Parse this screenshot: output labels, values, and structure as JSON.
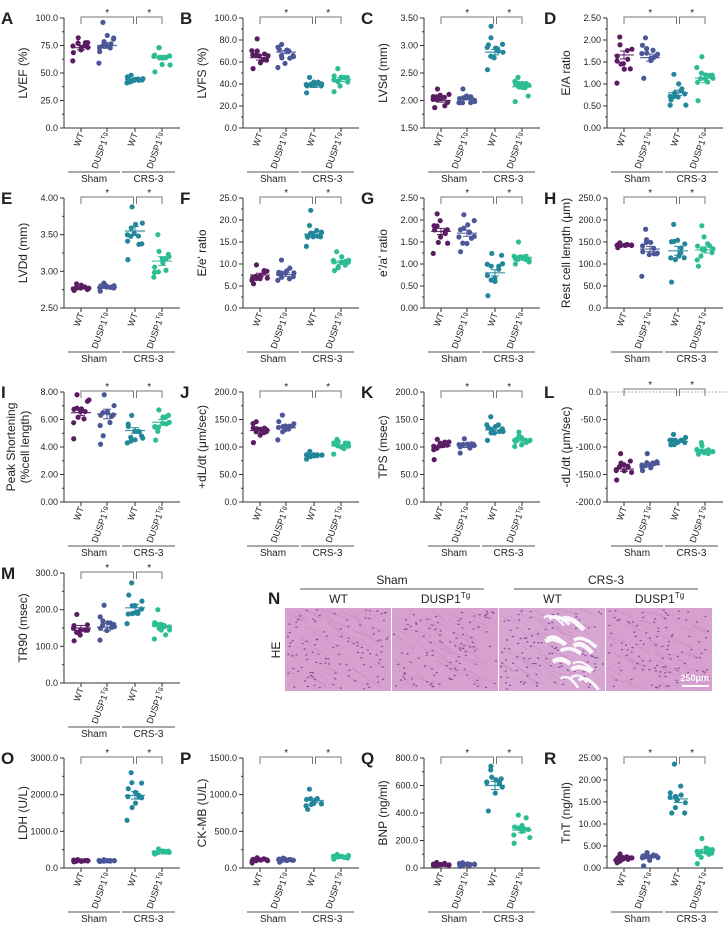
{
  "colors": {
    "sham_wt": "#5a1d62",
    "sham_tg": "#4c5797",
    "crs_wt": "#23879b",
    "crs_tg": "#2dbd95",
    "axis": "#333333",
    "bracket": "#777777"
  },
  "x_labels": {
    "wt": "WT",
    "tg": "DUSP1",
    "tg_sup": "Tg",
    "sham": "Sham",
    "crs": "CRS-3"
  },
  "significance": "*",
  "chart_data": [
    {
      "panel": "A",
      "type": "scatter",
      "ylabel": "LVEF (%)",
      "ylim": [
        0,
        100
      ],
      "ticks": [
        "0.0",
        "25.0",
        "50.0",
        "75.0",
        "100.0"
      ],
      "groups": [
        {
          "mean": 73,
          "sem": 2.0,
          "min": 61,
          "max": 82
        },
        {
          "mean": 75,
          "sem": 2.6,
          "min": 59,
          "max": 96
        },
        {
          "mean": 44,
          "sem": 0.7,
          "min": 41,
          "max": 48
        },
        {
          "mean": 64,
          "sem": 2.0,
          "min": 51,
          "max": 73
        }
      ]
    },
    {
      "panel": "B",
      "type": "scatter",
      "ylabel": "LVFS (%)",
      "ylim": [
        0,
        100
      ],
      "ticks": [
        "0.0",
        "20.0",
        "40.0",
        "60.0",
        "80.0",
        "100.0"
      ],
      "groups": [
        {
          "mean": 64,
          "sem": 2.3,
          "min": 54,
          "max": 81
        },
        {
          "mean": 69,
          "sem": 1.4,
          "min": 55,
          "max": 76
        },
        {
          "mean": 38,
          "sem": 1.2,
          "min": 32,
          "max": 46
        },
        {
          "mean": 44,
          "sem": 1.8,
          "min": 33,
          "max": 54
        }
      ]
    },
    {
      "panel": "C",
      "type": "scatter",
      "ylabel": "LVSd (mm)",
      "ylim": [
        1.5,
        3.5
      ],
      "ticks": [
        "1.50",
        "2.00",
        "2.50",
        "3.00",
        "3.50"
      ],
      "groups": [
        {
          "mean": 2.0,
          "sem": 0.03,
          "min": 1.87,
          "max": 2.21
        },
        {
          "mean": 2.03,
          "sem": 0.02,
          "min": 1.96,
          "max": 2.21
        },
        {
          "mean": 2.88,
          "sem": 0.05,
          "min": 2.56,
          "max": 3.35
        },
        {
          "mean": 2.25,
          "sem": 0.04,
          "min": 1.98,
          "max": 2.42
        }
      ]
    },
    {
      "panel": "D",
      "type": "scatter",
      "ylabel": "E/A ratio",
      "ylim": [
        0,
        2.5
      ],
      "ticks": [
        "0.00",
        "0.50",
        "1.00",
        "1.50",
        "2.00",
        "2.50"
      ],
      "groups": [
        {
          "mean": 1.66,
          "sem": 0.09,
          "min": 1.02,
          "max": 2.07
        },
        {
          "mean": 1.6,
          "sem": 0.08,
          "min": 1.13,
          "max": 2.05
        },
        {
          "mean": 0.8,
          "sem": 0.06,
          "min": 0.52,
          "max": 1.22
        },
        {
          "mean": 1.13,
          "sem": 0.1,
          "min": 0.62,
          "max": 1.62
        }
      ]
    },
    {
      "panel": "E",
      "type": "scatter",
      "ylabel": "LVDd (mm)",
      "ylim": [
        2.5,
        4.0
      ],
      "ticks": [
        "2.50",
        "3.00",
        "3.50",
        "4.00"
      ],
      "groups": [
        {
          "mean": 2.78,
          "sem": 0.01,
          "min": 2.74,
          "max": 2.83
        },
        {
          "mean": 2.78,
          "sem": 0.01,
          "min": 2.73,
          "max": 2.84
        },
        {
          "mean": 3.55,
          "sem": 0.06,
          "min": 3.16,
          "max": 3.88
        },
        {
          "mean": 3.14,
          "sem": 0.06,
          "min": 2.92,
          "max": 3.5
        }
      ]
    },
    {
      "panel": "F",
      "type": "scatter",
      "ylabel": "E/e' ratio",
      "ylim": [
        0,
        25
      ],
      "ticks": [
        "0.0",
        "5.0",
        "10.0",
        "15.0",
        "20.0",
        "25.0"
      ],
      "groups": [
        {
          "mean": 7.5,
          "sem": 0.4,
          "min": 5.5,
          "max": 9.8
        },
        {
          "mean": 7.6,
          "sem": 0.4,
          "min": 6.3,
          "max": 10.9
        },
        {
          "mean": 16.8,
          "sem": 0.6,
          "min": 14.0,
          "max": 22.2
        },
        {
          "mean": 10.3,
          "sem": 0.4,
          "min": 8.5,
          "max": 12.8
        }
      ]
    },
    {
      "panel": "G",
      "type": "scatter",
      "ylabel": "e'/a' ratio",
      "ylim": [
        0,
        2.5
      ],
      "ticks": [
        "0.00",
        "0.50",
        "1.00",
        "1.50",
        "2.00",
        "2.50"
      ],
      "groups": [
        {
          "mean": 1.74,
          "sem": 0.07,
          "min": 1.24,
          "max": 2.14
        },
        {
          "mean": 1.7,
          "sem": 0.07,
          "min": 1.28,
          "max": 2.12
        },
        {
          "mean": 0.8,
          "sem": 0.07,
          "min": 0.28,
          "max": 1.24
        },
        {
          "mean": 1.15,
          "sem": 0.05,
          "min": 1.0,
          "max": 1.5
        }
      ]
    },
    {
      "panel": "H",
      "type": "scatter",
      "ylabel": "Rest cell length (μm)",
      "ylim": [
        0,
        250
      ],
      "ticks": [
        "0.0",
        "50.0",
        "100.0",
        "150.0",
        "200.0",
        "250.0"
      ],
      "groups": [
        {
          "mean": 142,
          "sem": 1.2,
          "min": 137,
          "max": 148
        },
        {
          "mean": 134,
          "sem": 6,
          "min": 72,
          "max": 179
        },
        {
          "mean": 130,
          "sem": 10,
          "min": 59,
          "max": 190
        },
        {
          "mean": 132,
          "sem": 7,
          "min": 95,
          "max": 187
        }
      ]
    },
    {
      "panel": "I",
      "type": "scatter",
      "ylabel": "Peak Shortening",
      "ylabel2": "(%cell length)",
      "ylim": [
        0,
        8
      ],
      "ticks": [
        "0.00",
        "2.00",
        "4.00",
        "6.00",
        "8.00"
      ],
      "groups": [
        {
          "mean": 6.5,
          "sem": 0.2,
          "min": 4.6,
          "max": 7.8
        },
        {
          "mean": 6.4,
          "sem": 0.35,
          "min": 4.2,
          "max": 7.8
        },
        {
          "mean": 5.2,
          "sem": 0.2,
          "min": 4.3,
          "max": 6.3
        },
        {
          "mean": 5.8,
          "sem": 0.2,
          "min": 4.5,
          "max": 6.7
        }
      ]
    },
    {
      "panel": "J",
      "type": "scatter",
      "ylabel": "+dL/dt (μm/sec)",
      "ylim": [
        0,
        200
      ],
      "ticks": [
        "0.0",
        "50.0",
        "100.0",
        "150.0",
        "200.0"
      ],
      "groups": [
        {
          "mean": 130,
          "sem": 3,
          "min": 108,
          "max": 146
        },
        {
          "mean": 135,
          "sem": 4,
          "min": 113,
          "max": 158
        },
        {
          "mean": 84,
          "sem": 1.5,
          "min": 78,
          "max": 92
        },
        {
          "mean": 102,
          "sem": 2,
          "min": 87,
          "max": 114
        }
      ]
    },
    {
      "panel": "K",
      "type": "scatter",
      "ylabel": "TPS (msec)",
      "ylim": [
        0,
        200
      ],
      "ticks": [
        "0.0",
        "50.0",
        "100.0",
        "150.0",
        "200.0"
      ],
      "groups": [
        {
          "mean": 102,
          "sem": 3,
          "min": 77,
          "max": 114
        },
        {
          "mean": 102,
          "sem": 3,
          "min": 89,
          "max": 115
        },
        {
          "mean": 131,
          "sem": 5,
          "min": 112,
          "max": 155
        },
        {
          "mean": 112,
          "sem": 3,
          "min": 101,
          "max": 127
        }
      ]
    },
    {
      "panel": "L",
      "type": "scatter",
      "ylabel": "-dL/dt (μm/sec)",
      "ylim": [
        -200,
        0
      ],
      "ticks": [
        "-200.0",
        "-150.0",
        "-100.0",
        "-50.0",
        "0.0"
      ],
      "zero_line": "dotted",
      "groups": [
        {
          "mean": -140,
          "sem": 4,
          "min": -160,
          "max": -112
        },
        {
          "mean": -132,
          "sem": 3,
          "min": -143,
          "max": -112
        },
        {
          "mean": -90,
          "sem": 1.5,
          "min": -96,
          "max": -77
        },
        {
          "mean": -106,
          "sem": 2,
          "min": -113,
          "max": -92
        }
      ]
    },
    {
      "panel": "M",
      "type": "scatter",
      "ylabel": "TR90 (msec)",
      "ylim": [
        0,
        300
      ],
      "ticks": [
        "0.0",
        "100.0",
        "200.0",
        "300.0"
      ],
      "groups": [
        {
          "mean": 150,
          "sem": 7,
          "min": 115,
          "max": 187
        },
        {
          "mean": 152,
          "sem": 10,
          "min": 117,
          "max": 212
        },
        {
          "mean": 205,
          "sem": 10,
          "min": 162,
          "max": 273
        },
        {
          "mean": 155,
          "sem": 7,
          "min": 120,
          "max": 200
        }
      ]
    },
    {
      "panel": "O",
      "type": "scatter",
      "ylabel": "LDH (U/L)",
      "ylim": [
        0,
        3000
      ],
      "ticks": [
        "0.0",
        "1000.0",
        "2000.0",
        "3000.0"
      ],
      "groups": [
        {
          "mean": 200,
          "sem": 5,
          "min": 170,
          "max": 230
        },
        {
          "mean": 200,
          "sem": 5,
          "min": 175,
          "max": 225
        },
        {
          "mean": 1980,
          "sem": 100,
          "min": 1300,
          "max": 2600
        },
        {
          "mean": 430,
          "sem": 12,
          "min": 380,
          "max": 520
        }
      ]
    },
    {
      "panel": "P",
      "type": "scatter",
      "ylabel": "CK-MB (U/L)",
      "ylim": [
        0,
        1500
      ],
      "ticks": [
        "0.0",
        "500.0",
        "1000.0",
        "1500.0"
      ],
      "groups": [
        {
          "mean": 105,
          "sem": 5,
          "min": 70,
          "max": 140
        },
        {
          "mean": 108,
          "sem": 5,
          "min": 80,
          "max": 135
        },
        {
          "mean": 920,
          "sem": 25,
          "min": 800,
          "max": 1075
        },
        {
          "mean": 155,
          "sem": 6,
          "min": 120,
          "max": 185
        }
      ]
    },
    {
      "panel": "Q",
      "type": "scatter",
      "ylabel": "BNP (ng/ml)",
      "ylim": [
        0,
        800
      ],
      "ticks": [
        "0.0",
        "200.0",
        "400.0",
        "600.0",
        "800.0"
      ],
      "groups": [
        {
          "mean": 28,
          "sem": 2,
          "min": 15,
          "max": 40
        },
        {
          "mean": 26,
          "sem": 2,
          "min": 12,
          "max": 38
        },
        {
          "mean": 600,
          "sem": 30,
          "min": 415,
          "max": 740
        },
        {
          "mean": 275,
          "sem": 18,
          "min": 180,
          "max": 385
        }
      ]
    },
    {
      "panel": "R",
      "type": "scatter",
      "ylabel": "TnT (ng/ml)",
      "ylim": [
        0,
        25
      ],
      "ticks": [
        "0.00",
        "5.00",
        "10.00",
        "15.00",
        "20.00",
        "25.00"
      ],
      "groups": [
        {
          "mean": 2.1,
          "sem": 0.2,
          "min": 1.2,
          "max": 3.2
        },
        {
          "mean": 2.5,
          "sem": 0.25,
          "min": 0.5,
          "max": 3.5
        },
        {
          "mean": 15.7,
          "sem": 0.8,
          "min": 12.5,
          "max": 23.6
        },
        {
          "mean": 3.8,
          "sem": 0.45,
          "min": 1.0,
          "max": 6.7
        }
      ]
    }
  ],
  "histology": {
    "panel": "N",
    "stain": "HE",
    "groups": [
      {
        "label": "Sham",
        "cols": [
          "WT",
          "DUSP1"
        ]
      },
      {
        "label": "CRS-3",
        "cols": [
          "WT",
          "DUSP1"
        ]
      }
    ],
    "sup": "Tg",
    "scale_bar": "250μm"
  }
}
